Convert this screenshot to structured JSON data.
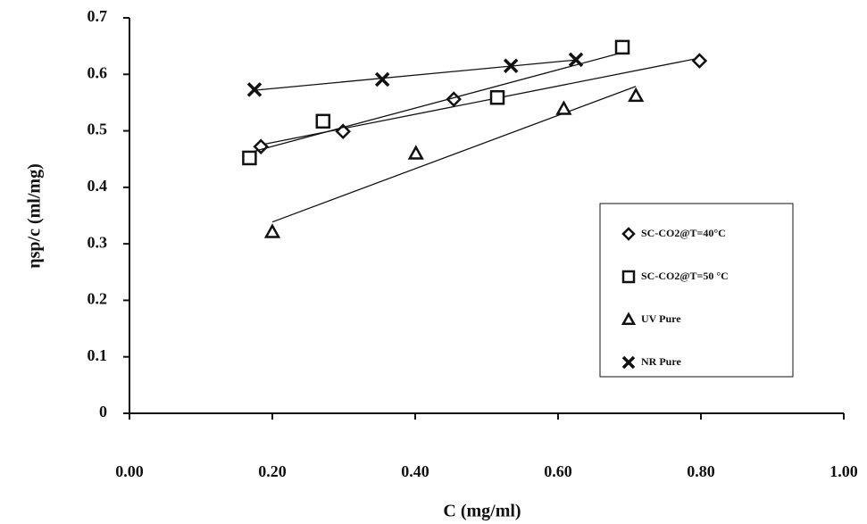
{
  "chart_data": {
    "type": "scatter",
    "x_label": "C (mg/ml)",
    "y_label": "ηsp/c (ml/mg)",
    "xlim": [
      0,
      1.0
    ],
    "ylim": [
      0,
      0.7
    ],
    "xticks": [
      {
        "value": 0,
        "label": "0.00"
      },
      {
        "value": 0.2,
        "label": "0.20"
      },
      {
        "value": 0.4,
        "label": "0.40"
      },
      {
        "value": 0.6,
        "label": "0.60"
      },
      {
        "value": 0.8,
        "label": "0.80"
      },
      {
        "value": 1.0,
        "label": "1.00"
      }
    ],
    "yticks": [
      0,
      0.1,
      0.2,
      0.3,
      0.4,
      0.5,
      0.6,
      0.7
    ],
    "legend": "right",
    "trendline": true,
    "series": [
      {
        "name": "SC-CO2@T=40°C",
        "marker": "diamond",
        "color": "#111111",
        "x": [
          0.184,
          0.299,
          0.454,
          0.798
        ],
        "values": [
          0.472,
          0.499,
          0.556,
          0.624
        ]
      },
      {
        "name": "SC-CO2@T=50 °C",
        "marker": "square",
        "color": "#111111",
        "x": [
          0.168,
          0.271,
          0.515,
          0.69
        ],
        "values": [
          0.452,
          0.517,
          0.559,
          0.648
        ]
      },
      {
        "name": "UV Pure",
        "marker": "triangle",
        "color": "#111111",
        "x": [
          0.2,
          0.401,
          0.608,
          0.709
        ],
        "values": [
          0.321,
          0.46,
          0.539,
          0.562
        ]
      },
      {
        "name": "NR Pure",
        "marker": "cross",
        "color": "#111111",
        "x": [
          0.175,
          0.354,
          0.534,
          0.625
        ],
        "values": [
          0.573,
          0.591,
          0.615,
          0.626
        ]
      }
    ]
  }
}
